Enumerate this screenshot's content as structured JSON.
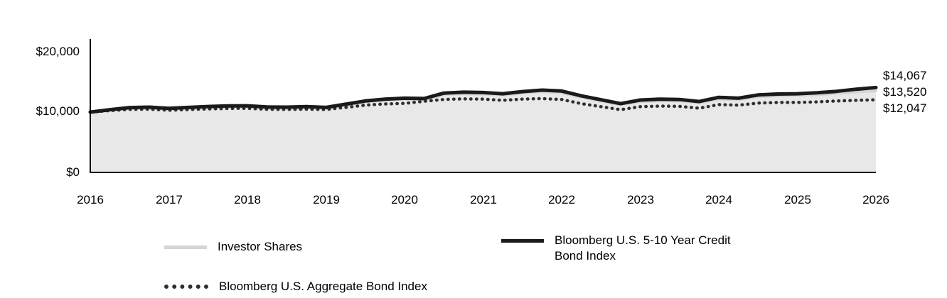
{
  "chart_data": {
    "type": "area",
    "xlim": [
      2016,
      2026
    ],
    "ylim": [
      0,
      20000
    ],
    "grid": false,
    "legend_position": "bottom",
    "x": [
      2016,
      2016.25,
      2016.5,
      2016.75,
      2017,
      2017.25,
      2017.5,
      2017.75,
      2018,
      2018.25,
      2018.5,
      2018.75,
      2019,
      2019.25,
      2019.5,
      2019.75,
      2020,
      2020.25,
      2020.5,
      2020.75,
      2021,
      2021.25,
      2021.5,
      2021.75,
      2022,
      2022.25,
      2022.5,
      2022.75,
      2023,
      2023.25,
      2023.5,
      2023.75,
      2024,
      2024.25,
      2024.5,
      2024.75,
      2025,
      2025.25,
      2025.5,
      2025.75,
      2026
    ],
    "series": [
      {
        "name": "Investor Shares",
        "style": "solid",
        "color": "#d5d5d5",
        "fill": "#e8e8e8",
        "width": 4,
        "end_label": "$13,520",
        "values": [
          10000,
          10350,
          10650,
          10700,
          10530,
          10680,
          10820,
          10900,
          10920,
          10750,
          10730,
          10800,
          10700,
          11180,
          11700,
          11980,
          12120,
          12000,
          12900,
          13050,
          13000,
          12820,
          13150,
          13380,
          13230,
          12450,
          11830,
          11200,
          11750,
          11900,
          11850,
          11520,
          12180,
          12050,
          12550,
          12700,
          12750,
          12880,
          13100,
          13350,
          13520
        ]
      },
      {
        "name": "Bloomberg U.S. Aggregate Bond Index",
        "style": "dotted",
        "color": "#2f2f2f",
        "width": 4.5,
        "end_label": "$12,047",
        "values": [
          10000,
          10250,
          10450,
          10480,
          10300,
          10420,
          10530,
          10600,
          10620,
          10470,
          10450,
          10480,
          10430,
          10780,
          11150,
          11350,
          11450,
          11800,
          12100,
          12200,
          12150,
          11950,
          12150,
          12250,
          12100,
          11400,
          10900,
          10400,
          10900,
          11000,
          10950,
          10650,
          11250,
          11150,
          11500,
          11600,
          11600,
          11700,
          11850,
          11950,
          12047
        ]
      },
      {
        "name": "Bloomberg U.S. 5-10 Year Credit Bond Index",
        "style": "solid",
        "color": "#1a1a1a",
        "width": 5,
        "end_label": "$14,067",
        "values": [
          10000,
          10400,
          10750,
          10820,
          10620,
          10780,
          10930,
          11020,
          11050,
          10850,
          10820,
          10900,
          10780,
          11300,
          11850,
          12150,
          12300,
          12250,
          13150,
          13300,
          13250,
          13050,
          13400,
          13650,
          13500,
          12700,
          12050,
          11400,
          12000,
          12150,
          12100,
          11750,
          12450,
          12300,
          12850,
          13000,
          13050,
          13200,
          13450,
          13800,
          14067
        ]
      }
    ],
    "yticks": [
      {
        "value": 20000,
        "label": "$20,000"
      },
      {
        "value": 10000,
        "label": "$10,000"
      },
      {
        "value": 0,
        "label": "$0"
      }
    ],
    "xticks": [
      "2016",
      "2017",
      "2018",
      "2019",
      "2020",
      "2021",
      "2022",
      "2023",
      "2024",
      "2025",
      "2026"
    ]
  },
  "legend": {
    "items": [
      {
        "label_lines": [
          "Investor Shares"
        ]
      },
      {
        "label_lines": [
          "Bloomberg U.S. 5-10 Year Credit",
          "Bond Index"
        ]
      },
      {
        "label_lines": [
          "Bloomberg U.S. Aggregate Bond Index"
        ]
      }
    ]
  }
}
